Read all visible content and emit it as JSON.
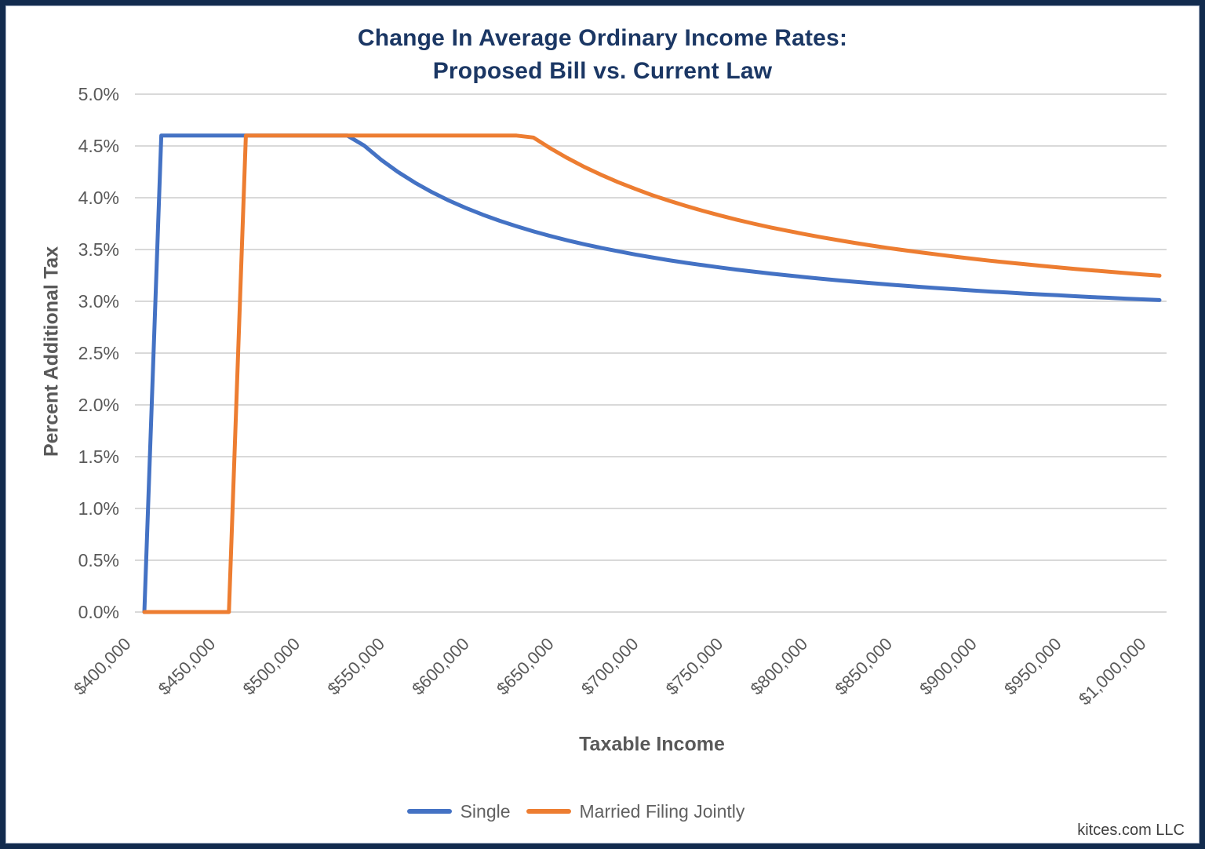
{
  "title": {
    "line1": "Change In Average Ordinary Income Rates:",
    "line2": "Proposed Bill vs. Current Law"
  },
  "footer": "kitces.com LLC",
  "colors": {
    "title": "#1B3764",
    "border": "#122B4E",
    "axis_text": "#595959",
    "axis_title": "#595959",
    "legend_text": "#616161",
    "footer_text": "#3F3F3F",
    "gridline": "#D9D9D9",
    "single": "#4472C4",
    "married": "#ED7D31"
  },
  "chart_data": {
    "type": "line",
    "title": "Change In Average Ordinary Income Rates: Proposed Bill vs. Current Law",
    "xlabel": "Taxable Income",
    "ylabel": "Percent Additional Tax",
    "xlim": [
      400000,
      1000000
    ],
    "ylim": [
      0,
      5
    ],
    "grid": "horizontal-only",
    "legend_position": "bottom",
    "x_tick_labels": [
      "$400,000",
      "$450,000",
      "$500,000",
      "$550,000",
      "$600,000",
      "$650,000",
      "$700,000",
      "$750,000",
      "$800,000",
      "$850,000",
      "$900,000",
      "$950,000",
      "$1,000,000"
    ],
    "y_tick_labels": [
      "0.0%",
      "0.5%",
      "1.0%",
      "1.5%",
      "2.0%",
      "2.5%",
      "3.0%",
      "3.5%",
      "4.0%",
      "4.5%",
      "5.0%"
    ],
    "x": [
      400000,
      410000,
      420000,
      430000,
      440000,
      450000,
      460000,
      470000,
      480000,
      490000,
      500000,
      510000,
      520000,
      530000,
      540000,
      550000,
      560000,
      570000,
      580000,
      590000,
      600000,
      610000,
      620000,
      630000,
      640000,
      650000,
      660000,
      670000,
      680000,
      690000,
      700000,
      710000,
      720000,
      730000,
      740000,
      750000,
      760000,
      770000,
      780000,
      790000,
      800000,
      810000,
      820000,
      830000,
      840000,
      850000,
      860000,
      870000,
      880000,
      890000,
      900000,
      910000,
      920000,
      930000,
      940000,
      950000,
      960000,
      970000,
      980000,
      990000,
      1000000
    ],
    "series": [
      {
        "name": "Single",
        "color": "#4472C4",
        "values": [
          0,
          4.6,
          4.6,
          4.6,
          4.6,
          4.6,
          4.6,
          4.6,
          4.6,
          4.6,
          4.6,
          4.6,
          4.6,
          4.502,
          4.366,
          4.248,
          4.145,
          4.054,
          3.973,
          3.901,
          3.836,
          3.777,
          3.724,
          3.675,
          3.63,
          3.589,
          3.551,
          3.516,
          3.483,
          3.452,
          3.424,
          3.397,
          3.372,
          3.349,
          3.327,
          3.306,
          3.287,
          3.268,
          3.251,
          3.234,
          3.218,
          3.203,
          3.189,
          3.175,
          3.162,
          3.149,
          3.137,
          3.126,
          3.115,
          3.104,
          3.094,
          3.085,
          3.075,
          3.066,
          3.058,
          3.049,
          3.041,
          3.034,
          3.026,
          3.019,
          3.012
        ]
      },
      {
        "name": "Married Filing Jointly",
        "color": "#ED7D31",
        "values": [
          0,
          0,
          0,
          0,
          0,
          0,
          4.6,
          4.6,
          4.6,
          4.6,
          4.6,
          4.6,
          4.6,
          4.6,
          4.6,
          4.6,
          4.6,
          4.6,
          4.6,
          4.6,
          4.6,
          4.6,
          4.6,
          4.581,
          4.477,
          4.383,
          4.298,
          4.221,
          4.15,
          4.086,
          4.026,
          3.972,
          3.921,
          3.874,
          3.83,
          3.789,
          3.75,
          3.714,
          3.681,
          3.649,
          3.619,
          3.591,
          3.564,
          3.538,
          3.514,
          3.492,
          3.47,
          3.449,
          3.429,
          3.41,
          3.392,
          3.375,
          3.359,
          3.343,
          3.328,
          3.313,
          3.299,
          3.286,
          3.273,
          3.26,
          3.248
        ]
      }
    ]
  }
}
